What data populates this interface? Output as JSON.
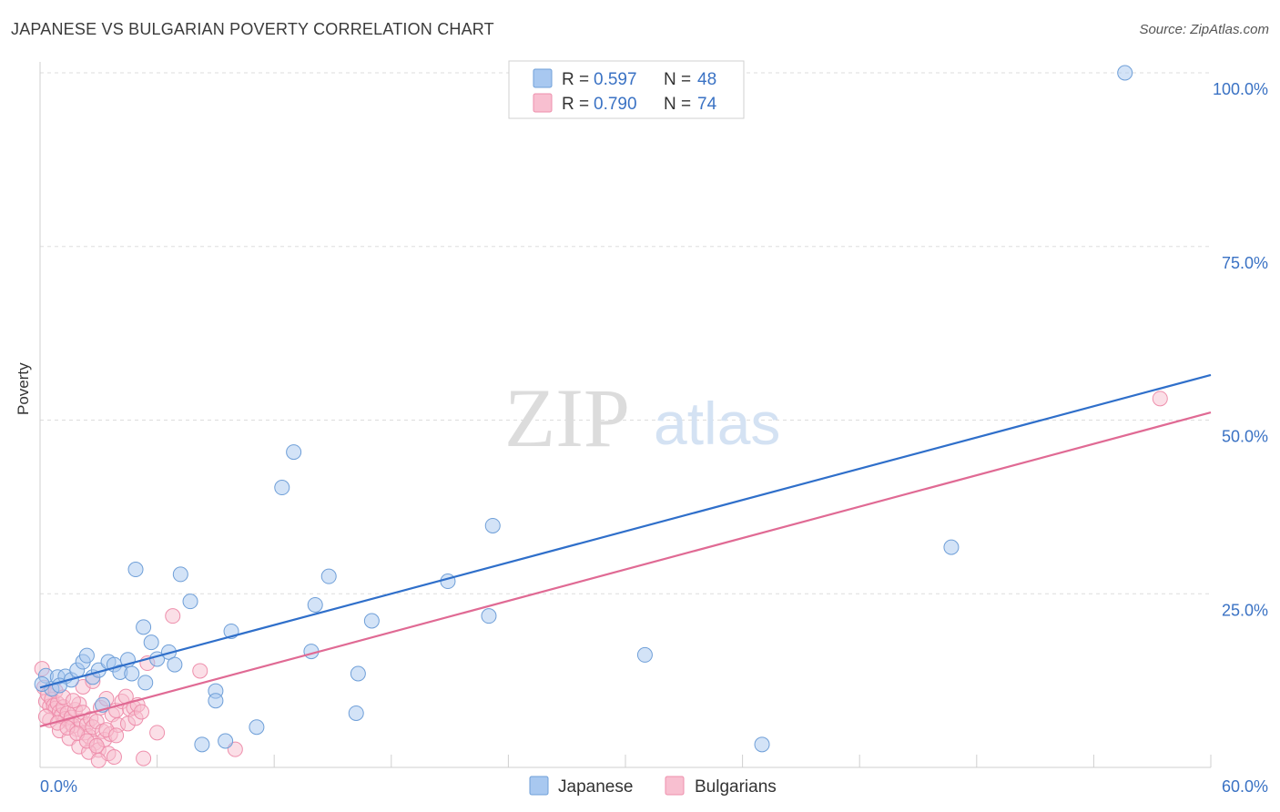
{
  "header": {
    "title": "JAPANESE VS BULGARIAN POVERTY CORRELATION CHART",
    "source": "Source: ZipAtlas.com"
  },
  "watermark": {
    "zip": "ZIP",
    "atlas": "atlas"
  },
  "legend_stats": [
    {
      "r_label": "R =",
      "r_value": "0.597",
      "n_label": "N =",
      "n_value": "48"
    },
    {
      "r_label": "R =",
      "r_value": "0.790",
      "n_label": "N =",
      "n_value": "74"
    }
  ],
  "colors": {
    "japanese_fill": "#a8c8f0",
    "japanese_stroke": "#6f9fd8",
    "japanese_line": "#2f6fca",
    "bulgarian_fill": "#f8bfd0",
    "bulgarian_stroke": "#ee8fac",
    "bulgarian_line": "#e06a94",
    "axis_label": "#3a72c4",
    "grid": "#dddddd"
  },
  "chart_data": {
    "type": "scatter",
    "title": "JAPANESE VS BULGARIAN POVERTY CORRELATION CHART",
    "xlabel": "",
    "ylabel": "Poverty",
    "xlim": [
      0,
      60
    ],
    "ylim": [
      0,
      100
    ],
    "x_tick_labels": [
      "0.0%",
      "60.0%"
    ],
    "y_tick_labels": [
      "25.0%",
      "50.0%",
      "75.0%",
      "100.0%"
    ],
    "y_ticks": [
      25,
      50,
      75,
      100
    ],
    "grid": true,
    "legend_position": "bottom-center",
    "series": [
      {
        "name": "Japanese",
        "r": 0.597,
        "n": 48,
        "trend": [
          [
            0,
            11.5
          ],
          [
            60,
            56.5
          ]
        ],
        "points": [
          [
            0.3,
            13.2
          ],
          [
            0.6,
            11.3
          ],
          [
            0.9,
            13.0
          ],
          [
            1.3,
            13.1
          ],
          [
            1.6,
            12.6
          ],
          [
            1.9,
            14.0
          ],
          [
            2.2,
            15.2
          ],
          [
            2.4,
            16.1
          ],
          [
            2.7,
            13.0
          ],
          [
            3.0,
            14.0
          ],
          [
            3.5,
            15.2
          ],
          [
            3.8,
            14.8
          ],
          [
            4.1,
            13.7
          ],
          [
            4.5,
            15.5
          ],
          [
            4.7,
            13.5
          ],
          [
            4.9,
            28.5
          ],
          [
            5.3,
            20.2
          ],
          [
            5.4,
            12.2
          ],
          [
            5.7,
            18.0
          ],
          [
            6.0,
            15.6
          ],
          [
            6.6,
            16.6
          ],
          [
            6.9,
            14.8
          ],
          [
            7.2,
            27.8
          ],
          [
            7.7,
            23.9
          ],
          [
            8.3,
            3.3
          ],
          [
            9.0,
            11.0
          ],
          [
            9.0,
            9.6
          ],
          [
            9.5,
            3.8
          ],
          [
            9.8,
            19.6
          ],
          [
            11.1,
            5.8
          ],
          [
            12.4,
            40.3
          ],
          [
            13.0,
            45.4
          ],
          [
            13.9,
            16.7
          ],
          [
            14.1,
            23.4
          ],
          [
            14.8,
            27.5
          ],
          [
            16.2,
            7.8
          ],
          [
            16.3,
            13.5
          ],
          [
            17.0,
            21.1
          ],
          [
            20.9,
            26.8
          ],
          [
            23.0,
            21.8
          ],
          [
            23.2,
            34.8
          ],
          [
            31.0,
            16.2
          ],
          [
            37.0,
            3.3
          ],
          [
            46.7,
            31.7
          ],
          [
            55.6,
            100.0
          ],
          [
            0.1,
            12.0
          ],
          [
            1.0,
            11.8
          ],
          [
            3.2,
            9.0
          ]
        ]
      },
      {
        "name": "Bulgarians",
        "r": 0.79,
        "n": 74,
        "trend": [
          [
            0,
            5.9
          ],
          [
            60,
            51.1
          ]
        ],
        "points": [
          [
            0.1,
            14.2
          ],
          [
            0.2,
            11.5
          ],
          [
            0.3,
            9.5
          ],
          [
            0.4,
            10.5
          ],
          [
            0.5,
            8.8
          ],
          [
            0.6,
            9.8
          ],
          [
            0.7,
            8.9
          ],
          [
            0.8,
            8.5
          ],
          [
            0.9,
            9.2
          ],
          [
            1.0,
            8.0
          ],
          [
            1.1,
            7.5
          ],
          [
            1.2,
            8.7
          ],
          [
            1.3,
            7.0
          ],
          [
            1.4,
            7.8
          ],
          [
            1.5,
            6.5
          ],
          [
            1.6,
            7.2
          ],
          [
            1.7,
            6.0
          ],
          [
            1.8,
            8.3
          ],
          [
            1.9,
            5.5
          ],
          [
            2.0,
            9.1
          ],
          [
            2.1,
            6.7
          ],
          [
            2.2,
            7.9
          ],
          [
            2.3,
            5.0
          ],
          [
            2.4,
            6.2
          ],
          [
            2.5,
            4.5
          ],
          [
            2.6,
            7.0
          ],
          [
            2.7,
            5.8
          ],
          [
            2.8,
            3.5
          ],
          [
            2.9,
            6.6
          ],
          [
            3.0,
            2.5
          ],
          [
            3.1,
            8.6
          ],
          [
            3.2,
            5.2
          ],
          [
            3.3,
            4.0
          ],
          [
            3.4,
            9.9
          ],
          [
            3.5,
            2.0
          ],
          [
            3.6,
            4.8
          ],
          [
            3.7,
            7.6
          ],
          [
            3.8,
            1.5
          ],
          [
            3.9,
            8.2
          ],
          [
            4.0,
            6.1
          ],
          [
            4.2,
            9.5
          ],
          [
            4.4,
            10.2
          ],
          [
            4.6,
            8.4
          ],
          [
            4.8,
            8.6
          ],
          [
            5.0,
            9.0
          ],
          [
            5.3,
            1.3
          ],
          [
            5.5,
            15.0
          ],
          [
            6.0,
            5.0
          ],
          [
            6.8,
            21.8
          ],
          [
            8.2,
            13.9
          ],
          [
            10.0,
            2.6
          ],
          [
            57.4,
            53.1
          ],
          [
            0.5,
            6.8
          ],
          [
            1.0,
            5.3
          ],
          [
            1.5,
            4.2
          ],
          [
            2.0,
            3.0
          ],
          [
            2.5,
            2.2
          ],
          [
            3.0,
            1.0
          ],
          [
            0.8,
            11.0
          ],
          [
            1.2,
            10.1
          ],
          [
            1.7,
            9.6
          ],
          [
            2.2,
            11.6
          ],
          [
            2.7,
            12.4
          ],
          [
            0.3,
            7.3
          ],
          [
            0.9,
            6.4
          ],
          [
            1.4,
            5.7
          ],
          [
            1.9,
            4.9
          ],
          [
            2.4,
            3.8
          ],
          [
            2.9,
            3.1
          ],
          [
            3.4,
            5.4
          ],
          [
            3.9,
            4.6
          ],
          [
            4.5,
            6.3
          ],
          [
            4.9,
            7.1
          ],
          [
            5.2,
            8.0
          ]
        ]
      }
    ]
  }
}
